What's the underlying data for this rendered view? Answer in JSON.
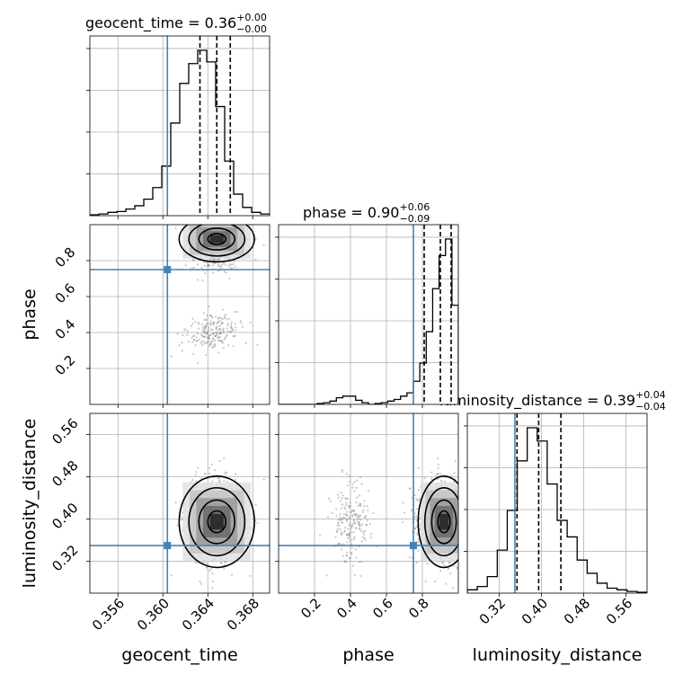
{
  "chart_data": {
    "type": "corner",
    "parameters": [
      {
        "name": "geocent_time",
        "title_prefix": "geocent_time = ",
        "median": "0.36",
        "plus": "+0.00",
        "minus": "−0.00",
        "injection": 0.3604,
        "quantiles": [
          0.3633,
          0.3648,
          0.366
        ],
        "range": [
          0.3535,
          0.3695
        ],
        "ticks": [
          0.356,
          0.36,
          0.364,
          0.368
        ],
        "tick_labels": [
          "0.356",
          "0.360",
          "0.364",
          "0.368"
        ],
        "hist": [
          0.005,
          0.01,
          0.02,
          0.025,
          0.04,
          0.06,
          0.1,
          0.17,
          0.3,
          0.56,
          0.8,
          0.92,
          1.0,
          0.93,
          0.66,
          0.33,
          0.13,
          0.05,
          0.02,
          0.01
        ]
      },
      {
        "name": "phase",
        "title_prefix": "phase = ",
        "median": "0.90",
        "plus": "+0.06",
        "minus": "−0.09",
        "injection": 0.75,
        "quantiles": [
          0.81,
          0.9,
          0.96
        ],
        "range": [
          0.0,
          1.0
        ],
        "ticks": [
          0.2,
          0.4,
          0.6,
          0.8
        ],
        "tick_labels": [
          "0.2",
          "0.4",
          "0.6",
          "0.8"
        ],
        "hist": [
          0,
          0,
          0,
          0,
          0,
          0,
          0.005,
          0.01,
          0.02,
          0.04,
          0.05,
          0.05,
          0.025,
          0.01,
          0,
          0.005,
          0.01,
          0.02,
          0.03,
          0.05,
          0.07,
          0.14,
          0.25,
          0.44,
          0.7,
          0.9,
          1.0,
          0.6
        ]
      },
      {
        "name": "luminosity_distance",
        "title_prefix": "luminosity_distance = ",
        "median": "0.39",
        "plus": "+0.04",
        "minus": "−0.04",
        "injection": 0.35,
        "quantiles": [
          0.354,
          0.395,
          0.437
        ],
        "range": [
          0.26,
          0.6
        ],
        "ticks": [
          0.32,
          0.4,
          0.48,
          0.56
        ],
        "tick_labels": [
          "0.32",
          "0.40",
          "0.48",
          "0.56"
        ],
        "hist": [
          0.02,
          0.04,
          0.1,
          0.26,
          0.5,
          0.8,
          1.0,
          0.92,
          0.66,
          0.44,
          0.34,
          0.2,
          0.12,
          0.06,
          0.03,
          0.02,
          0.01,
          0.005
        ]
      }
    ],
    "ylabels": [
      "phase",
      "luminosity_distance"
    ],
    "xlabels": [
      "geocent_time",
      "phase",
      "luminosity_distance"
    ],
    "grid": true,
    "colors": {
      "hist_line": "#000000",
      "injection": "#4682b4",
      "quantile": "#000000",
      "grid": "#b0b0b0",
      "scatter": "#888888"
    }
  }
}
